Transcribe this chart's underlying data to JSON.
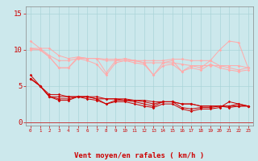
{
  "background_color": "#cce8ec",
  "grid_color": "#aad4d8",
  "x": [
    0,
    1,
    2,
    3,
    4,
    5,
    6,
    7,
    8,
    9,
    10,
    11,
    12,
    13,
    14,
    15,
    16,
    17,
    18,
    19,
    20,
    21,
    22,
    23
  ],
  "xlabel": "Vent moyen/en rafales ( km/h )",
  "xlabel_color": "#cc0000",
  "xlabel_fontsize": 6.5,
  "yticks": [
    0,
    5,
    10,
    15
  ],
  "ylim": [
    -0.5,
    16.0
  ],
  "xlim": [
    -0.5,
    23.5
  ],
  "line1": [
    11.2,
    10.2,
    10.2,
    9.2,
    8.8,
    9.0,
    8.8,
    8.8,
    8.7,
    8.7,
    8.7,
    8.5,
    8.5,
    8.5,
    8.5,
    8.7,
    8.7,
    8.5,
    8.5,
    8.5,
    10.0,
    11.2,
    11.0,
    7.5
  ],
  "line2": [
    10.2,
    10.2,
    9.2,
    8.5,
    8.5,
    8.8,
    8.8,
    8.8,
    8.5,
    8.5,
    8.5,
    8.5,
    8.2,
    8.2,
    8.2,
    8.2,
    8.0,
    7.8,
    7.8,
    7.8,
    7.8,
    7.8,
    7.8,
    7.5
  ],
  "line3": [
    10.2,
    10.0,
    9.0,
    7.5,
    7.5,
    9.0,
    8.8,
    8.8,
    6.8,
    8.5,
    8.8,
    8.5,
    8.2,
    6.5,
    8.2,
    8.5,
    7.0,
    7.8,
    7.5,
    8.5,
    7.8,
    7.5,
    7.2,
    7.5
  ],
  "line4": [
    10.0,
    10.0,
    9.0,
    7.5,
    7.5,
    8.8,
    8.5,
    8.0,
    6.5,
    8.2,
    8.5,
    8.2,
    8.0,
    6.5,
    7.8,
    8.0,
    7.0,
    7.5,
    7.2,
    8.0,
    7.5,
    7.2,
    7.0,
    7.2
  ],
  "line5": [
    6.5,
    5.0,
    3.8,
    3.8,
    3.5,
    3.5,
    3.5,
    3.5,
    3.2,
    3.2,
    3.2,
    3.0,
    3.0,
    2.8,
    2.8,
    2.8,
    2.5,
    2.5,
    2.2,
    2.2,
    2.2,
    2.2,
    2.2,
    2.2
  ],
  "line6": [
    6.0,
    5.0,
    3.5,
    3.5,
    3.5,
    3.5,
    3.5,
    3.2,
    3.2,
    3.2,
    3.0,
    3.0,
    2.8,
    2.5,
    2.8,
    2.8,
    2.5,
    2.5,
    2.2,
    2.2,
    2.2,
    2.0,
    2.2,
    2.2
  ],
  "line7": [
    6.0,
    5.0,
    3.5,
    3.2,
    3.2,
    3.5,
    3.5,
    3.2,
    2.5,
    3.0,
    3.0,
    2.8,
    2.5,
    2.2,
    2.8,
    2.8,
    2.0,
    1.8,
    2.0,
    2.0,
    2.2,
    2.2,
    2.5,
    2.2
  ],
  "line8": [
    6.0,
    5.0,
    3.5,
    3.0,
    3.0,
    3.5,
    3.2,
    3.0,
    2.5,
    2.8,
    2.8,
    2.5,
    2.2,
    2.0,
    2.5,
    2.5,
    1.8,
    1.5,
    1.8,
    1.8,
    2.0,
    2.8,
    2.5,
    2.2
  ],
  "line1_color": "#ffaaaa",
  "line2_color": "#ffaaaa",
  "line3_color": "#ffaaaa",
  "line4_color": "#ffaaaa",
  "line5_color": "#cc0000",
  "line6_color": "#cc0000",
  "line7_color": "#cc0000",
  "line8_color": "#cc0000",
  "marker_size": 1.8,
  "linewidth": 0.7,
  "arrows": [
    "→",
    "→",
    "→",
    "↘",
    "→",
    "→",
    "→",
    "→",
    "→",
    "→",
    "→",
    "↗",
    "↗",
    "↑",
    "↖",
    "↖",
    "↑",
    "↖",
    "↑",
    "↖",
    "↑",
    "↖",
    "↗",
    "↗"
  ]
}
